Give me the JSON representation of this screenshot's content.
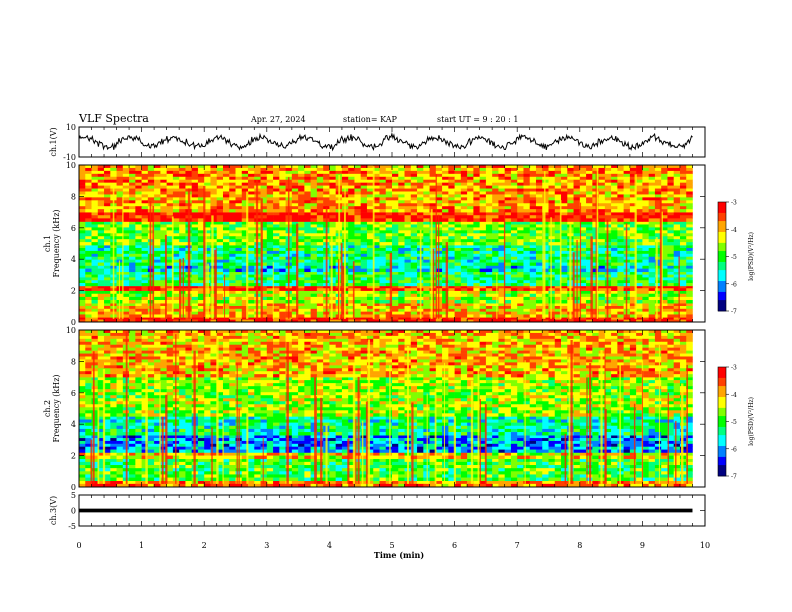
{
  "header": {
    "title": "VLF Spectra",
    "date": "Apr. 27, 2024",
    "station": "station= KAP",
    "start": "start UT = 9 : 20 : 1"
  },
  "colors": {
    "background": "#ffffff",
    "axis": "#000000",
    "waveform": "#000000",
    "colormap": [
      "#000080",
      "#0000ff",
      "#0080ff",
      "#00ffff",
      "#00ff80",
      "#00ff00",
      "#80ff00",
      "#ffff00",
      "#ffa500",
      "#ff4000",
      "#ff0000",
      "#ffffff"
    ]
  },
  "chart_data": [
    {
      "type": "line",
      "panel": "ch1-waveform",
      "ylabel": "ch.1(V)",
      "ylim": [
        -10,
        10
      ],
      "yticks": [
        "10",
        "-10"
      ],
      "xlim": [
        0,
        10
      ],
      "note_values": "continuous noisy waveform oscillating roughly between -5 and 5 V across 0 to ~9.8 min"
    },
    {
      "type": "heatmap",
      "panel": "ch1-spectrogram",
      "ylabel": "ch.1 Frequency (kHz)",
      "ylim": [
        0,
        10
      ],
      "yticks": [
        "0",
        "2",
        "4",
        "6",
        "8",
        "10"
      ],
      "xlim": [
        0,
        10
      ],
      "colorbar": {
        "label": "log(PSD)(V²/Hz)",
        "ticks": [
          "-3",
          "-4",
          "-5",
          "-6",
          "-7"
        ],
        "range": [
          -7,
          -3
        ]
      },
      "bands": [
        {
          "f0": 0,
          "f1": 0.3,
          "level": -3.3
        },
        {
          "f0": 0.3,
          "f1": 1.2,
          "level": -4.1
        },
        {
          "f0": 1.2,
          "f1": 2.0,
          "level": -4.6
        },
        {
          "f0": 2.0,
          "f1": 2.3,
          "level": -3.4
        },
        {
          "f0": 2.3,
          "f1": 3.2,
          "level": -5.2
        },
        {
          "f0": 3.2,
          "f1": 3.6,
          "level": -5.7
        },
        {
          "f0": 3.6,
          "f1": 4.9,
          "level": -5.3
        },
        {
          "f0": 4.9,
          "f1": 6.4,
          "level": -4.8
        },
        {
          "f0": 6.4,
          "f1": 7.0,
          "level": -3.2
        },
        {
          "f0": 7.0,
          "f1": 10.0,
          "level": -3.9
        }
      ]
    },
    {
      "type": "heatmap",
      "panel": "ch2-spectrogram",
      "ylabel": "ch.2 Frequency (kHz)",
      "ylim": [
        0,
        10
      ],
      "yticks": [
        "0",
        "2",
        "4",
        "6",
        "8",
        "10"
      ],
      "xlim": [
        0,
        10
      ],
      "colorbar": {
        "label": "log(PSD)(V²/Hz)",
        "ticks": [
          "-3",
          "-4",
          "-5",
          "-6",
          "-7"
        ],
        "range": [
          -7,
          -3
        ]
      },
      "bands": [
        {
          "f0": 0,
          "f1": 0.4,
          "level": -3.8
        },
        {
          "f0": 0.4,
          "f1": 1.8,
          "level": -5.0
        },
        {
          "f0": 1.8,
          "f1": 2.2,
          "level": -4.2
        },
        {
          "f0": 2.2,
          "f1": 3.3,
          "level": -6.0
        },
        {
          "f0": 3.3,
          "f1": 4.5,
          "level": -5.4
        },
        {
          "f0": 4.5,
          "f1": 7.0,
          "level": -4.6
        },
        {
          "f0": 7.0,
          "f1": 10.0,
          "level": -4.0
        }
      ]
    },
    {
      "type": "line",
      "panel": "ch3-waveform",
      "ylabel": "ch.3(V)",
      "ylim": [
        -5,
        5
      ],
      "yticks": [
        "5",
        "0",
        "-5"
      ],
      "xlim": [
        0,
        10
      ],
      "xlabel": "Time (min)",
      "xticks": [
        "0",
        "1",
        "2",
        "3",
        "4",
        "5",
        "6",
        "7",
        "8",
        "9",
        "10"
      ],
      "note_values": "thick flat trace at about 0 V from 0 to ~9.8 min"
    }
  ]
}
